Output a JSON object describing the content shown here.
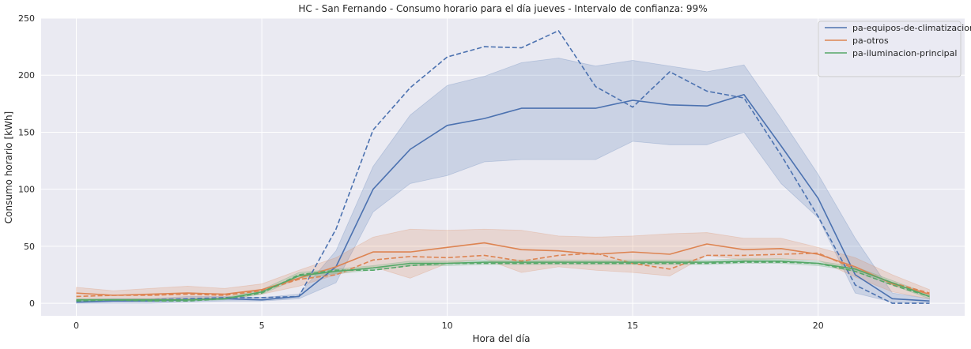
{
  "chart_data": {
    "type": "line",
    "title": "HC - San Fernando - Consumo horario para el día jueves - Intervalo de confianza: 99%",
    "xlabel": "Hora del día",
    "ylabel": "Consumo horario [kWh]",
    "xlim": [
      -0.95,
      23.95
    ],
    "ylim": [
      -11,
      250
    ],
    "xticks": [
      0,
      5,
      10,
      15,
      20
    ],
    "yticks": [
      0,
      50,
      100,
      150,
      200,
      250
    ],
    "grid": true,
    "legend_position": "top-right",
    "background": "#eaeaf2",
    "x": [
      0,
      1,
      2,
      3,
      4,
      5,
      6,
      7,
      8,
      9,
      10,
      11,
      12,
      13,
      14,
      15,
      16,
      17,
      18,
      19,
      20,
      21,
      22,
      23
    ],
    "series": [
      {
        "name": "pa-equipos-de-climatizacion",
        "color": "#4c72b0",
        "mean": [
          1,
          2,
          2,
          3,
          4,
          3,
          6,
          32,
          100,
          135,
          156,
          162,
          171,
          171,
          171,
          178,
          174,
          173,
          183,
          138,
          92,
          25,
          4,
          2
        ],
        "lower": [
          0,
          0,
          0,
          1,
          2,
          2,
          4,
          18,
          80,
          105,
          112,
          124,
          126,
          126,
          126,
          142,
          139,
          139,
          150,
          105,
          75,
          9,
          1,
          0
        ],
        "upper": [
          3,
          4,
          4,
          6,
          6,
          5,
          8,
          46,
          120,
          165,
          191,
          199,
          211,
          215,
          208,
          213,
          208,
          203,
          209,
          162,
          113,
          57,
          9,
          4
        ],
        "reference": [
          2,
          2,
          3,
          4,
          5,
          5,
          6,
          65,
          152,
          189,
          216,
          225,
          224,
          239,
          190,
          172,
          203,
          186,
          180,
          130,
          76,
          16,
          0,
          0
        ]
      },
      {
        "name": "pa-otros",
        "color": "#dd8452",
        "mean": [
          9,
          7,
          8,
          9,
          8,
          12,
          22,
          32,
          45,
          45,
          49,
          53,
          47,
          46,
          43,
          45,
          43,
          52,
          47,
          48,
          43,
          32,
          17,
          8
        ],
        "lower": [
          4,
          3,
          4,
          4,
          4,
          8,
          15,
          25,
          32,
          22,
          35,
          39,
          27,
          32,
          29,
          27,
          24,
          42,
          38,
          39,
          38,
          23,
          10,
          4
        ],
        "upper": [
          14,
          11,
          13,
          15,
          13,
          17,
          29,
          40,
          58,
          65,
          64,
          65,
          64,
          59,
          58,
          59,
          61,
          62,
          57,
          57,
          49,
          40,
          25,
          12
        ],
        "reference": [
          6,
          7,
          7,
          8,
          7,
          11,
          21,
          25,
          38,
          41,
          40,
          42,
          37,
          42,
          44,
          35,
          30,
          42,
          42,
          43,
          44,
          30,
          18,
          9
        ]
      },
      {
        "name": "pa-iluminacion-principal",
        "color": "#55a868",
        "mean": [
          3,
          3,
          3,
          3,
          4,
          10,
          24,
          28,
          31,
          35,
          35,
          36,
          36,
          36,
          36,
          36,
          36,
          36,
          37,
          37,
          35,
          30,
          18,
          6
        ],
        "lower": [
          2,
          2,
          2,
          2,
          3,
          8,
          22,
          26,
          29,
          33,
          33,
          34,
          34,
          34,
          34,
          34,
          34,
          34,
          35,
          35,
          33,
          28,
          16,
          4
        ],
        "upper": [
          4,
          4,
          4,
          4,
          5,
          12,
          27,
          30,
          33,
          37,
          37,
          38,
          38,
          38,
          38,
          38,
          38,
          38,
          39,
          39,
          37,
          32,
          20,
          8
        ],
        "reference": [
          2,
          3,
          2,
          2,
          4,
          9,
          25,
          29,
          29,
          33,
          35,
          35,
          35,
          35,
          35,
          35,
          35,
          35,
          36,
          36,
          35,
          28,
          16,
          6
        ]
      }
    ]
  }
}
